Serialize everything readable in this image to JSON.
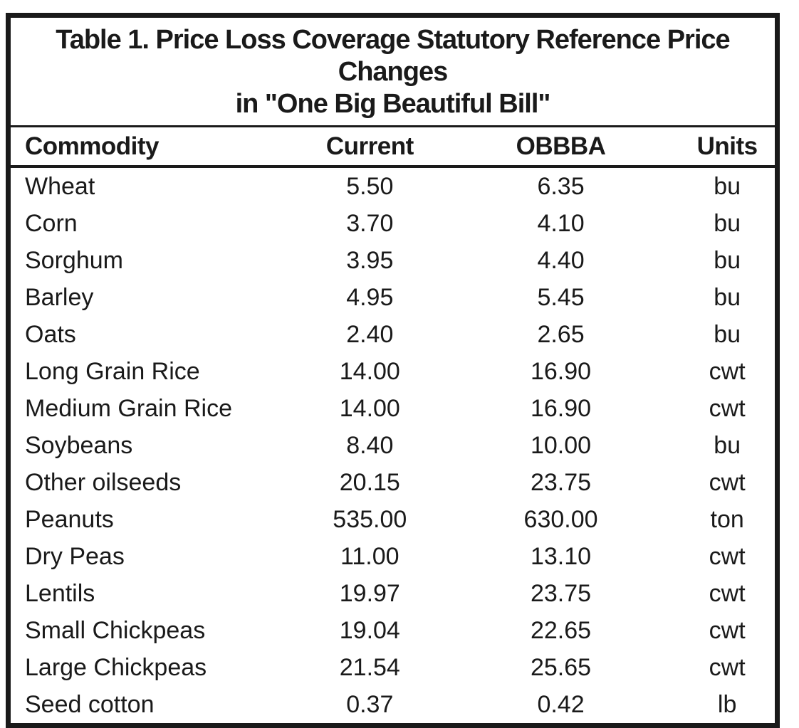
{
  "header": {
    "title_line1": "Table 1. Price Loss Coverage Statutory Reference Price Changes",
    "title_line2": "in \"One Big Beautiful Bill\""
  },
  "chart_data": {
    "type": "table",
    "title": "Table 1. Price Loss Coverage Statutory Reference Price Changes in \"One Big Beautiful Bill\"",
    "columns": [
      "Commodity",
      "Current",
      "OBBBA",
      "Units"
    ],
    "rows": [
      [
        "Wheat",
        "5.50",
        "6.35",
        "bu"
      ],
      [
        "Corn",
        "3.70",
        "4.10",
        "bu"
      ],
      [
        "Sorghum",
        "3.95",
        "4.40",
        "bu"
      ],
      [
        "Barley",
        "4.95",
        "5.45",
        "bu"
      ],
      [
        "Oats",
        "2.40",
        "2.65",
        "bu"
      ],
      [
        "Long Grain Rice",
        "14.00",
        "16.90",
        "cwt"
      ],
      [
        "Medium Grain Rice",
        "14.00",
        "16.90",
        "cwt"
      ],
      [
        "Soybeans",
        "8.40",
        "10.00",
        "bu"
      ],
      [
        "Other oilseeds",
        "20.15",
        "23.75",
        "cwt"
      ],
      [
        "Peanuts",
        "535.00",
        "630.00",
        "ton"
      ],
      [
        "Dry Peas",
        "11.00",
        "13.10",
        "cwt"
      ],
      [
        "Lentils",
        "19.97",
        "23.75",
        "cwt"
      ],
      [
        "Small Chickpeas",
        "19.04",
        "22.65",
        "cwt"
      ],
      [
        "Large Chickpeas",
        "21.54",
        "25.65",
        "cwt"
      ],
      [
        "Seed cotton",
        "0.37",
        "0.42",
        "lb"
      ]
    ]
  },
  "colors": {
    "text": "#1a1a1a",
    "border": "#1a1a1a",
    "background": "#ffffff"
  }
}
